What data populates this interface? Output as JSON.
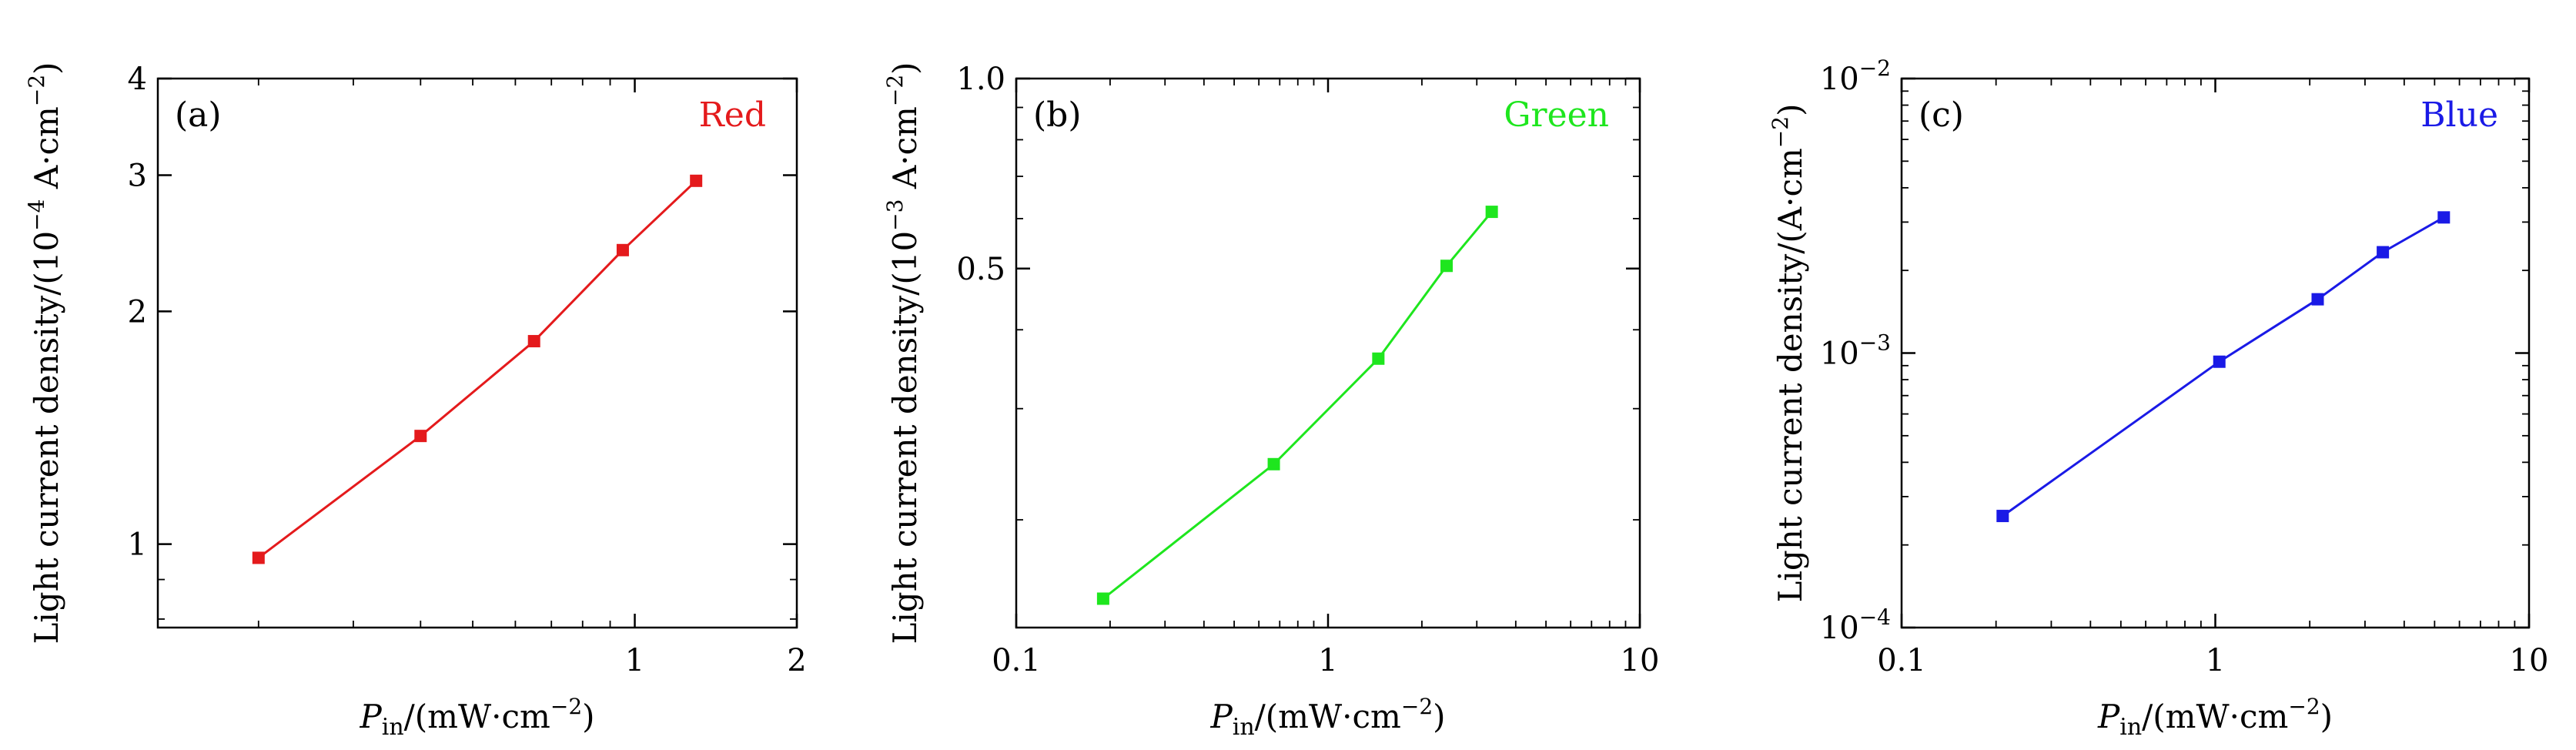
{
  "chart_data": [
    {
      "type": "line",
      "panel_label": "(a)",
      "series": [
        {
          "name": "Red",
          "color": "#e41a1c",
          "x": [
            0.2,
            0.4,
            0.65,
            0.95,
            1.3
          ],
          "y": [
            0.96,
            1.38,
            1.83,
            2.4,
            2.95
          ]
        }
      ],
      "xlabel": "P",
      "xlabel_sub": "in",
      "xlabel_unit": "/(mW·cm",
      "xlabel_unit_exp": "−2",
      "xlabel_unit_close": ")",
      "ylabel": "Light current density/(10",
      "ylabel_exp1": "−4",
      "ylabel_mid": " A·cm",
      "ylabel_exp2": "−2",
      "ylabel_close": ")",
      "x_scale": "log",
      "y_scale": "log",
      "xlim": [
        0.13,
        2.0
      ],
      "ylim": [
        0.78,
        4.0
      ],
      "x_ticks": [
        1,
        2
      ],
      "x_tick_labels": [
        "1",
        "2"
      ],
      "y_ticks": [
        1,
        2,
        3,
        4
      ],
      "y_tick_labels": [
        "1",
        "2",
        "3",
        "4"
      ],
      "legend_position": "top-right",
      "grid": false
    },
    {
      "type": "line",
      "panel_label": "(b)",
      "series": [
        {
          "name": "Green",
          "color": "#1ee61e",
          "x": [
            0.19,
            0.67,
            1.45,
            2.4,
            3.35
          ],
          "y": [
            0.15,
            0.245,
            0.36,
            0.505,
            0.615
          ]
        }
      ],
      "xlabel": "P",
      "xlabel_sub": "in",
      "xlabel_unit": "/(mW·cm",
      "xlabel_unit_exp": "−2",
      "xlabel_unit_close": ")",
      "ylabel": "Light current density/(10",
      "ylabel_exp1": "−3",
      "ylabel_mid": " A·cm",
      "ylabel_exp2": "−2",
      "ylabel_close": ")",
      "x_scale": "log",
      "y_scale": "log",
      "xlim": [
        0.1,
        10
      ],
      "ylim": [
        0.135,
        1.0
      ],
      "x_ticks": [
        0.1,
        1,
        10
      ],
      "x_tick_labels": [
        "0.1",
        "1",
        "10"
      ],
      "y_ticks": [
        0.5,
        1.0
      ],
      "y_tick_labels": [
        "0.5",
        "1.0"
      ],
      "legend_position": "top-right",
      "grid": false
    },
    {
      "type": "line",
      "panel_label": "(c)",
      "series": [
        {
          "name": "Blue",
          "color": "#1a1ae6",
          "x": [
            0.21,
            1.03,
            2.12,
            3.42,
            5.35
          ],
          "y": [
            0.000255,
            0.00093,
            0.00157,
            0.00233,
            0.00312
          ]
        }
      ],
      "xlabel": "P",
      "xlabel_sub": "in",
      "xlabel_unit": "/(mW·cm",
      "xlabel_unit_exp": "−2",
      "xlabel_unit_close": ")",
      "ylabel": "Light current density/(A·cm",
      "ylabel_exp1": "",
      "ylabel_mid": "",
      "ylabel_exp2": "−2",
      "ylabel_close": ")",
      "x_scale": "log",
      "y_scale": "log",
      "xlim": [
        0.1,
        10
      ],
      "ylim": [
        0.0001,
        0.01
      ],
      "x_ticks": [
        0.1,
        1,
        10
      ],
      "x_tick_labels": [
        "0.1",
        "1",
        "10"
      ],
      "y_ticks": [
        0.0001,
        0.001,
        0.01
      ],
      "y_tick_labels": [
        [
          "10",
          "−4"
        ],
        [
          "10",
          "−3"
        ],
        [
          "10",
          "−2"
        ]
      ],
      "legend_position": "top-right",
      "grid": false
    }
  ]
}
